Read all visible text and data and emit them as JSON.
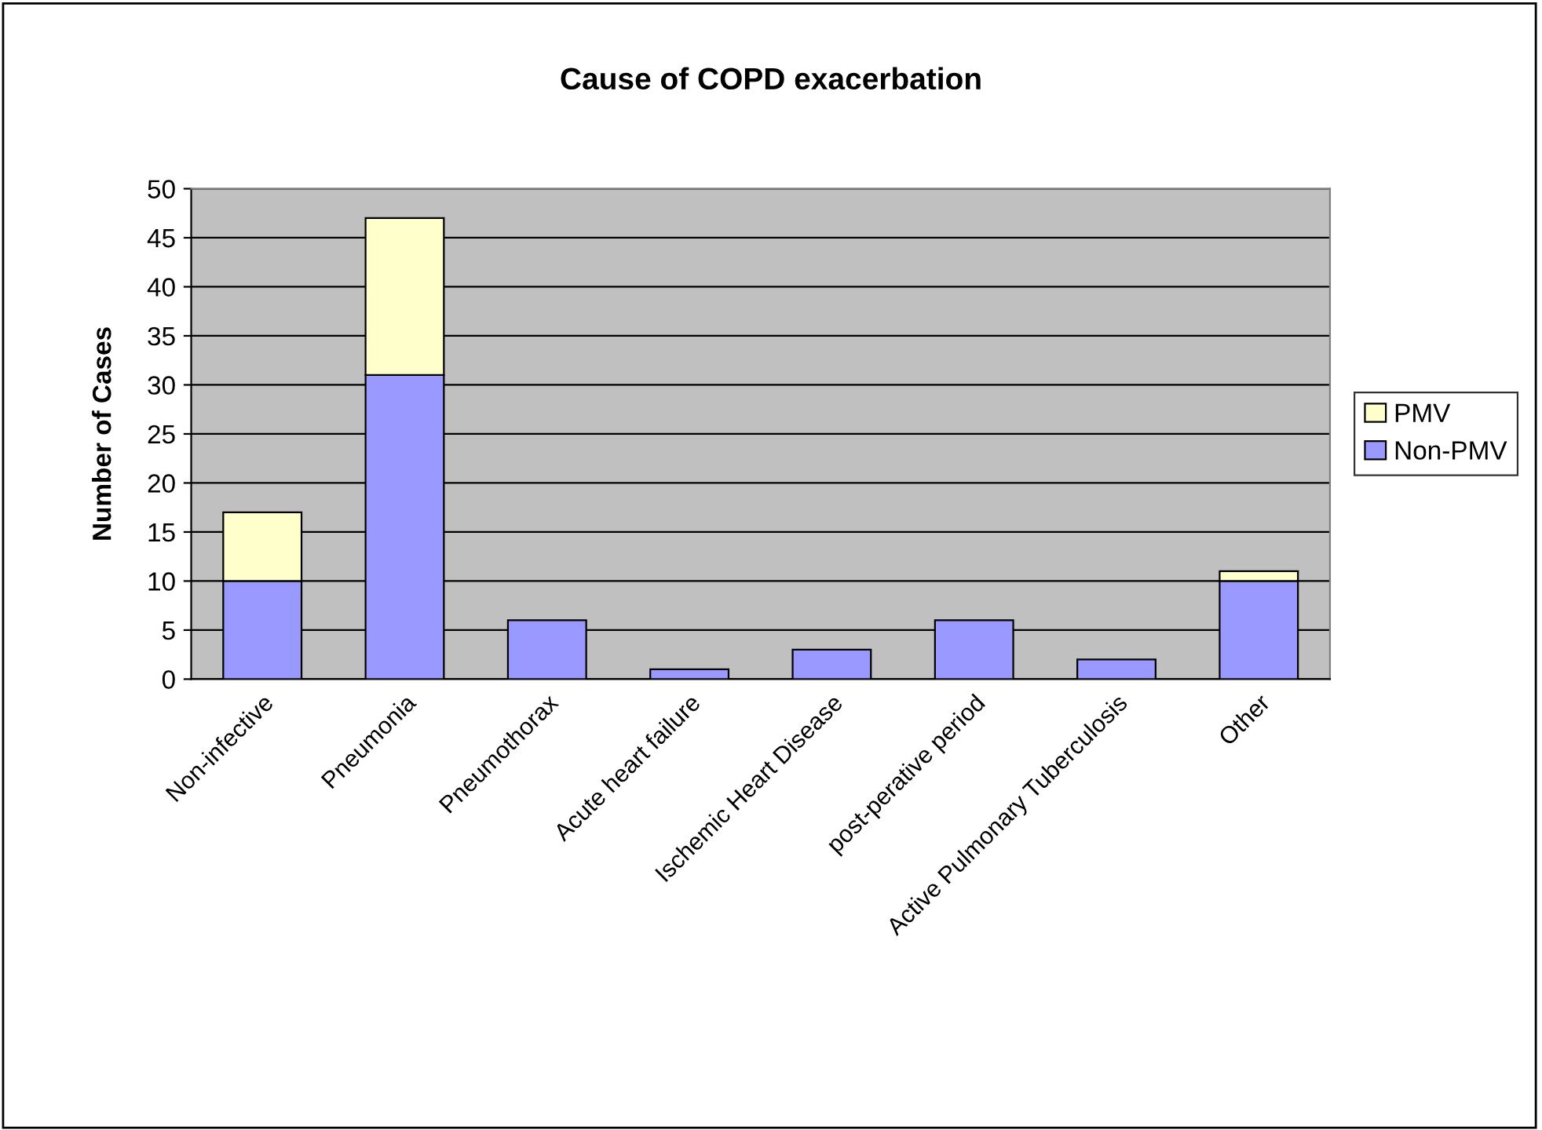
{
  "chart_data": {
    "type": "bar",
    "title": "Cause of COPD exacerbation",
    "ylabel": "Number of Cases",
    "categories": [
      "Non-infective",
      "Pneumonia",
      "Pneumothorax",
      "Acute heart failure",
      "Ischemic Heart Disease",
      "post-perative period",
      "Active Pulmonary Tuberculosis",
      "Other"
    ],
    "stacked": true,
    "series": [
      {
        "name": "Non-PMV",
        "color": "#9999ff",
        "values": [
          10,
          31,
          6,
          1,
          3,
          6,
          2,
          10
        ]
      },
      {
        "name": "PMV",
        "color": "#ffffcc",
        "values": [
          7,
          16,
          0,
          0,
          0,
          0,
          0,
          1
        ]
      }
    ],
    "ylim": [
      0,
      50
    ],
    "yticks": [
      0,
      5,
      10,
      15,
      20,
      25,
      30,
      35,
      40,
      45,
      50
    ],
    "grid": "y",
    "legend": "right"
  }
}
